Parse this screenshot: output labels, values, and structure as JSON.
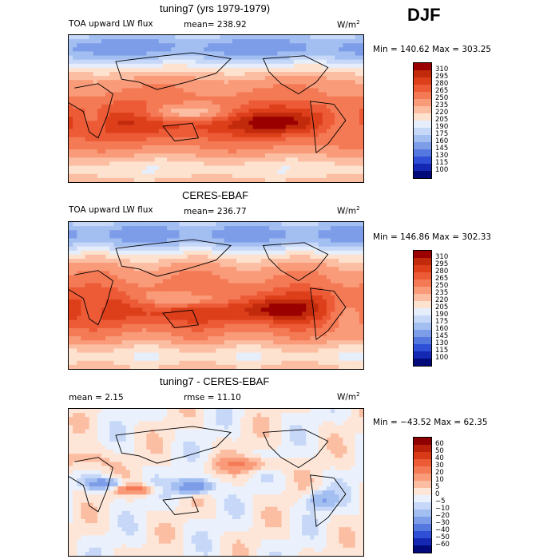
{
  "season": "DJF",
  "chart_data": [
    {
      "type": "heatmap",
      "title": "tuning7 (yrs 1979-1979)",
      "variable_label": "TOA upward LW flux",
      "mean_text": "mean= 238.92",
      "units_text": "W/m",
      "units_sup": "2",
      "range_text": "Min = 140.62 Max = 303.25",
      "min": 140.62,
      "max": 303.25,
      "mean": 238.92,
      "levels": [
        "310",
        "295",
        "280",
        "265",
        "250",
        "235",
        "220",
        "205",
        "190",
        "175",
        "160",
        "145",
        "130",
        "115",
        "100"
      ],
      "colors": [
        "#9b0000",
        "#c22a0c",
        "#dd3f1b",
        "#ec5a36",
        "#f47a55",
        "#f99a79",
        "#fcbea2",
        "#fde2d0",
        "#e6eefb",
        "#c6d7f7",
        "#a3bef1",
        "#7d9de9",
        "#5577e0",
        "#2f4fd6",
        "#1428b4",
        "#020a7a"
      ]
    },
    {
      "type": "heatmap",
      "title": "CERES-EBAF",
      "variable_label": "TOA upward LW flux",
      "mean_text": "mean= 236.77",
      "units_text": "W/m",
      "units_sup": "2",
      "range_text": "Min = 146.86 Max = 302.33",
      "min": 146.86,
      "max": 302.33,
      "mean": 236.77,
      "levels": [
        "310",
        "295",
        "280",
        "265",
        "250",
        "235",
        "220",
        "205",
        "190",
        "175",
        "160",
        "145",
        "130",
        "115",
        "100"
      ],
      "colors": [
        "#9b0000",
        "#c22a0c",
        "#dd3f1b",
        "#ec5a36",
        "#f47a55",
        "#f99a79",
        "#fcbea2",
        "#fde2d0",
        "#e6eefb",
        "#c6d7f7",
        "#a3bef1",
        "#7d9de9",
        "#5577e0",
        "#2f4fd6",
        "#1428b4",
        "#020a7a"
      ]
    },
    {
      "type": "heatmap",
      "title": "tuning7 - CERES-EBAF",
      "mean_text": "mean =    2.15",
      "rmse_text": "rmse =   11.10",
      "units_text": "W/m",
      "units_sup": "2",
      "range_text": "Min = −43.52 Max =   62.35",
      "min": -43.52,
      "max": 62.35,
      "mean": 2.15,
      "rmse": 11.1,
      "levels": [
        "60",
        "50",
        "40",
        "30",
        "20",
        "10",
        "5",
        "0",
        "−5",
        "−10",
        "−20",
        "−30",
        "−40",
        "−50",
        "−60"
      ],
      "colors": [
        "#8e0000",
        "#b8200a",
        "#d83a18",
        "#ec5a36",
        "#f47a55",
        "#f99a79",
        "#fcbea2",
        "#fde6d8",
        "#eaf1fc",
        "#c6d7f7",
        "#a3bef1",
        "#7d9de9",
        "#5577e0",
        "#2f4fd6",
        "#1428b4",
        "#020a7a"
      ]
    }
  ]
}
